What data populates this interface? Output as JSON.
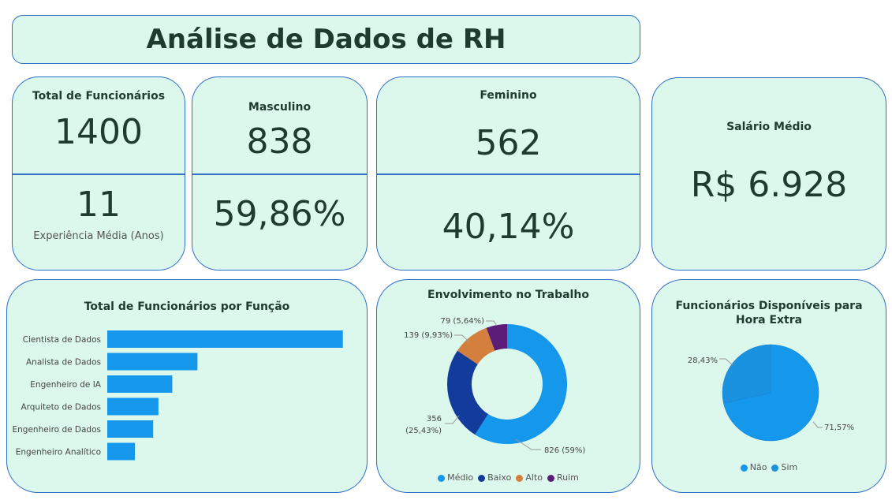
{
  "header": {
    "title": "Análise de Dados de RH"
  },
  "kpis": {
    "total": {
      "label": "Total de Funcionários",
      "value": "1400",
      "sub_value": "11",
      "sub_label": "Experiência Média (Anos)"
    },
    "male": {
      "label": "Masculino",
      "value": "838",
      "percent": "59,86%"
    },
    "female": {
      "label": "Feminino",
      "value": "562",
      "percent": "40,14%"
    },
    "salary": {
      "label": "Salário Médio",
      "value": "R$ 6.928"
    }
  },
  "chart_data": [
    {
      "type": "bar",
      "orientation": "horizontal",
      "title": "Total de Funcionários por Função",
      "categories": [
        "Cientista de Dados",
        "Analista de Dados",
        "Engenheiro de IA",
        "Arquiteto de Dados",
        "Engenheiro de Dados",
        "Engenheiro Analítico"
      ],
      "values": [
        580,
        222,
        160,
        126,
        113,
        68
      ],
      "color": "#1597ec",
      "xlim": [
        0,
        600
      ]
    },
    {
      "type": "pie",
      "donut": true,
      "title": "Envolvimento no Trabalho",
      "labels": [
        "Médio",
        "Baixo",
        "Alto",
        "Ruim"
      ],
      "values": [
        826,
        356,
        139,
        79
      ],
      "data_labels": [
        "826 (59%)",
        "356 (25,43%)",
        "139 (9,93%)",
        "79 (5,64%)"
      ],
      "colors": [
        "#1597ec",
        "#123b9c",
        "#d47f3e",
        "#5b1d78"
      ],
      "legend": "bottom"
    },
    {
      "type": "pie",
      "title": "Funcionários Disponíveis para Hora Extra",
      "labels": [
        "Não",
        "Sim"
      ],
      "values": [
        71.57,
        28.43
      ],
      "data_labels": [
        "71,57%",
        "28,43%"
      ],
      "colors": [
        "#1597ec",
        "#1b92e0"
      ],
      "legend": "bottom"
    }
  ]
}
